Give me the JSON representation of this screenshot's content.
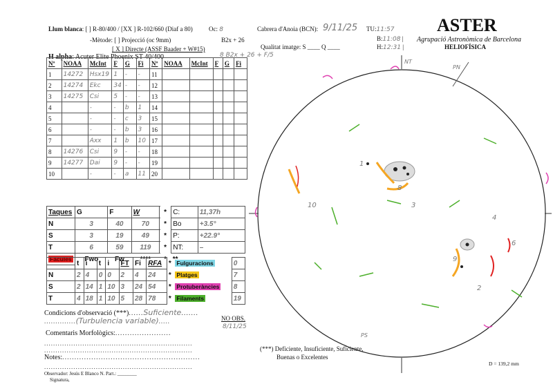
{
  "header": {
    "white_light_label": "Llum blanca",
    "white_light_options": ": [  ] R-80/400 / [XX ] R-102/660 (Diaf a 80)",
    "oc_label": "Oc:",
    "oc_value": "8",
    "method_label": "-Mètode: [    ]  Projecció  (oc 9mm)",
    "method_direct": "[ X ]  Directe (ASSF Baader + W#15)",
    "b2x_label": "B2x + 26",
    "halpha_label": "H alpha",
    "halpha_value": ": Acuter Elite Phoenix ST 40/400",
    "halpha_note": "8  B2x + 26 + F/5",
    "location_label": "Cabrera d'Anoia (BCN):",
    "date_value": "9/11/25",
    "tu_label": "TU:",
    "tu_value": "11:57",
    "b_label": "B:",
    "b_value": "11:08",
    "h_label": "H:",
    "h_value": "12:31",
    "quality_label": "Qualitat imatge:  S ____  Q ____"
  },
  "brand": {
    "title": "ASTER",
    "subtitle": "Agrupació Astronòmica de Barcelona",
    "section": "HELIOFÍSICA"
  },
  "groups_table": {
    "headers": [
      "Nº",
      "NOAA",
      "McInt",
      "F",
      "G",
      "Fi",
      "Nº",
      "NOAA",
      "McInt",
      "F",
      "G",
      "Fi"
    ],
    "rows": [
      {
        "n": "1",
        "noaa": "14272",
        "mcint": "Hsx19",
        "f": "1",
        "g": "-",
        "fi": "-",
        "n2": "11"
      },
      {
        "n": "2",
        "noaa": "14274",
        "mcint": "Ekc",
        "f": "34",
        "g": "-",
        "fi": "-",
        "n2": "12"
      },
      {
        "n": "3",
        "noaa": "14275",
        "mcint": "Csi",
        "f": "5",
        "g": "-",
        "fi": "-",
        "n2": "13"
      },
      {
        "n": "4",
        "noaa": "",
        "mcint": "-",
        "f": "-",
        "g": "b",
        "fi": "1",
        "n2": "14"
      },
      {
        "n": "5",
        "noaa": "",
        "mcint": "-",
        "f": "-",
        "g": "c",
        "fi": "3",
        "n2": "15"
      },
      {
        "n": "6",
        "noaa": "",
        "mcint": "-",
        "f": "-",
        "g": "b",
        "fi": "3",
        "n2": "16"
      },
      {
        "n": "7",
        "noaa": "",
        "mcint": "Axx",
        "f": "1",
        "g": "b",
        "fi": "10",
        "n2": "17"
      },
      {
        "n": "8",
        "noaa": "14276",
        "mcint": "Csi",
        "f": "9",
        "g": "-",
        "fi": "-",
        "n2": "18"
      },
      {
        "n": "9",
        "noaa": "14277",
        "mcint": "Dai",
        "f": "9",
        "g": "-",
        "fi": "-",
        "n2": "19"
      },
      {
        "n": "10",
        "noaa": "",
        "mcint": "-",
        "f": "-",
        "g": "a",
        "fi": "11",
        "n2": "20"
      }
    ]
  },
  "spots_table": {
    "headers": [
      "Taques",
      "G",
      "F",
      "W",
      "*"
    ],
    "rows": [
      {
        "label": "N",
        "g": "3",
        "f": "40",
        "w": "70",
        "k": "Bo",
        "v": "+3.5°"
      },
      {
        "label": "S",
        "g": "3",
        "f": "19",
        "w": "49",
        "k": "P:",
        "v": "+22.9°"
      },
      {
        "label": "T",
        "g": "6",
        "f": "59",
        "w": "119",
        "k": "NT:",
        "v": "–"
      }
    ],
    "c_label": "C:",
    "c_value": "11,37h",
    "faculae_label": "Fàcules",
    "fwo": "Fwo",
    "fw": "Fw",
    "stars4": "****",
    "star": "*",
    "stars2": "**",
    "sub_headers": [
      "t",
      "i",
      "t",
      "i",
      "FT",
      "Fi",
      "RFA"
    ],
    "sub_rows": [
      {
        "label": "N",
        "v": [
          "2",
          "4",
          "0",
          "0",
          "2",
          "4",
          "24"
        ]
      },
      {
        "label": "S",
        "v": [
          "2",
          "14",
          "1",
          "10",
          "3",
          "24",
          "54"
        ]
      },
      {
        "label": "T",
        "v": [
          "4",
          "18",
          "1",
          "10",
          "5",
          "28",
          "78"
        ]
      }
    ],
    "activity": [
      {
        "label": "Fulguracions",
        "value": "0",
        "color": "#7fd6e6"
      },
      {
        "label": "Platges",
        "value": "7",
        "color": "#f5c518"
      },
      {
        "label": "Protuberàncies",
        "value": "8",
        "color": "#e040b0"
      },
      {
        "label": "Filaments",
        "value": "19",
        "color": "#4caf2a"
      }
    ],
    "faculae_color": "#e02020"
  },
  "notes": {
    "conditions_label": "Condicions d'observació (***)",
    "conditions_value": "Suficiente",
    "conditions_value2": "(Turbulencia variable)",
    "morph_label": "Comentaris Morfològics:",
    "notes_label": "Notes:",
    "observer": "Observador:   Jesús E Blanco  N. Part.: ________",
    "signature": "Signatura,",
    "no_obs_label": "NO OBS.",
    "no_obs_value": "8/11/25",
    "legend_line1": "(***) Deficiente, Insuficiente, Suficiente,",
    "legend_line2": "Buenas o Excelentes",
    "diameter": "D = 139,2  mm"
  },
  "sketch": {
    "labels": {
      "pn": "PN",
      "nt": "NT",
      "ps": "PS",
      "g10": "10",
      "g4": "4",
      "g3": "3",
      "g2": "2",
      "g9": "9",
      "g6": "6",
      "g8": "8",
      "g1": "1"
    }
  }
}
